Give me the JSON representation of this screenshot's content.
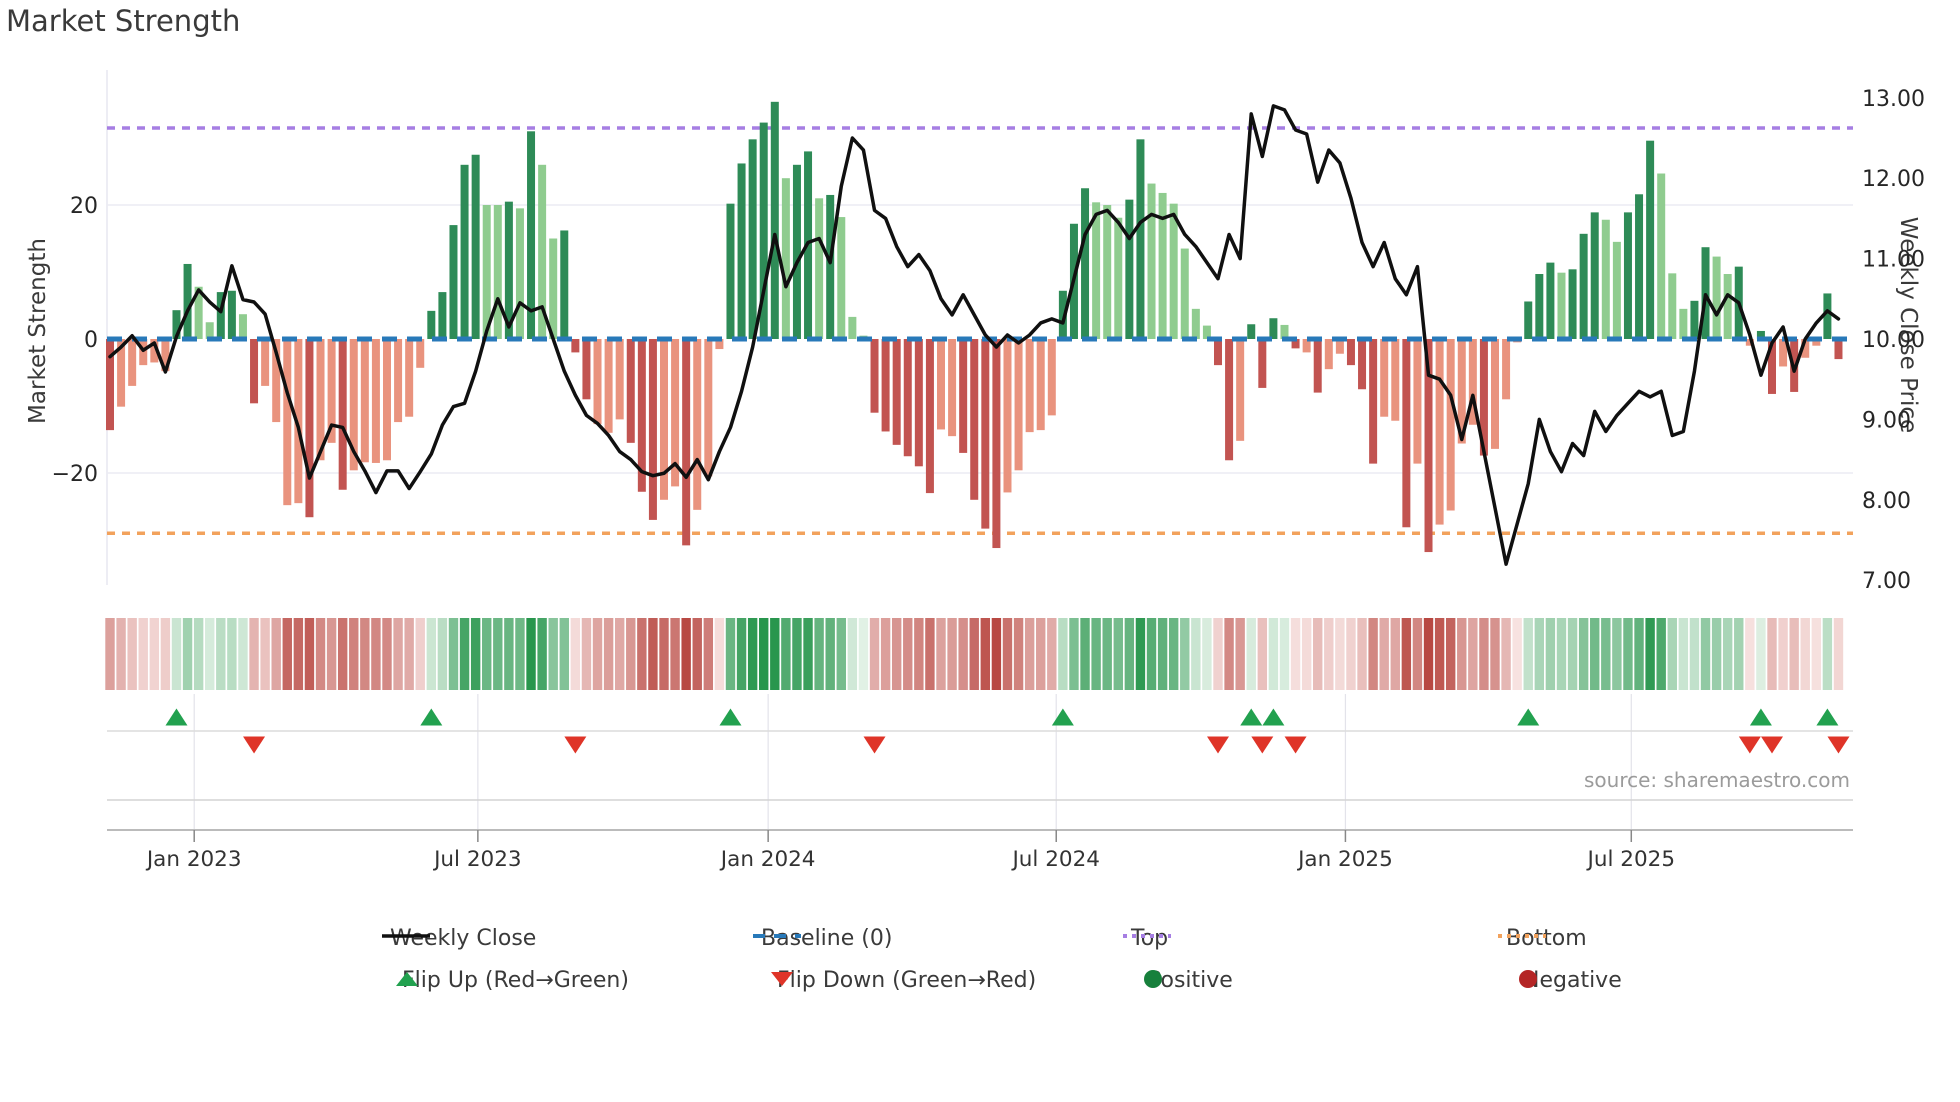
{
  "title": "Market Strength",
  "source": "source: sharemaestro.com",
  "left_axis_label": "Market Strength",
  "right_axis_label": "Weekly Close Price",
  "palette": {
    "dark_green": "#2e8b57",
    "light_green": "#8fcc8f",
    "salmon": "#e9937e",
    "dark_red": "#c25451",
    "baseline_blue": "#2879b9",
    "top_purple": "#a67ee3",
    "bottom_orange": "#f2a25c",
    "line_black": "#101010",
    "flip_up_green": "#22a14f",
    "flip_down_red": "#df3428",
    "positive_green": "#17803c",
    "negative_red": "#b42525",
    "grid": "#ebebf3",
    "band_grid": "#dcdcdc",
    "axis_spine": "#bbbbbb",
    "tick_text": "#262626"
  },
  "legend": {
    "row1": [
      {
        "label": "Weekly Close"
      },
      {
        "label": "Baseline (0)"
      },
      {
        "label": "Top"
      },
      {
        "label": "Bottom"
      }
    ],
    "row2": [
      {
        "label": "Flip Up (Red→Green)"
      },
      {
        "label": "Flip Down (Green→Red)"
      },
      {
        "label": "Positive"
      },
      {
        "label": "Negative"
      }
    ]
  },
  "chart_data": {
    "type": "bar+line combo with heatmap strip and flip markers",
    "title": "Market Strength",
    "x_axis": {
      "tick_labels": [
        "Jan 2023",
        "Jul 2023",
        "Jan 2024",
        "Jul 2024",
        "Jan 2025",
        "Jul 2025"
      ],
      "tick_weeks": [
        7.6,
        33.2,
        59.4,
        85.4,
        111.5,
        137.3
      ],
      "n_weeks": 157
    },
    "left_axis": {
      "label": "Market Strength",
      "ticks": [
        20,
        0,
        -20
      ],
      "baseline": 0,
      "top_line": 31.5,
      "bottom_line": -29
    },
    "right_axis": {
      "label": "Weekly Close Price",
      "ticks": [
        13,
        12,
        11,
        10,
        9,
        8,
        7
      ]
    },
    "strength_values": [
      -13.6,
      -10.1,
      -7.0,
      -3.9,
      -3.5,
      -4.8,
      4.3,
      11.2,
      7.8,
      2.5,
      7.0,
      7.2,
      3.7,
      -9.6,
      -7.0,
      -12.4,
      -24.8,
      -24.5,
      -26.6,
      -18.1,
      -15.5,
      -22.5,
      -19.6,
      -18.4,
      -18.5,
      -18.1,
      -12.4,
      -11.6,
      -4.3,
      4.2,
      7.0,
      17.0,
      26.0,
      27.5,
      20.0,
      20.0,
      20.5,
      19.5,
      31.0,
      26.0,
      15.0,
      16.2,
      -2.0,
      -9.0,
      -12.7,
      -14.0,
      -12.0,
      -15.5,
      -22.8,
      -27.0,
      -24.0,
      -22.0,
      -30.8,
      -25.5,
      -20.5,
      -1.5,
      20.2,
      26.2,
      29.8,
      32.3,
      35.4,
      24.0,
      26.0,
      28.0,
      21.0,
      21.5,
      18.2,
      3.3,
      0.5,
      -11.0,
      -13.8,
      -15.8,
      -17.5,
      -19.0,
      -23.0,
      -13.5,
      -14.5,
      -17.0,
      -24.0,
      -28.3,
      -31.2,
      -22.9,
      -19.6,
      -13.9,
      -13.6,
      -11.4,
      7.2,
      17.2,
      22.5,
      20.4,
      20.0,
      18.1,
      20.8,
      29.8,
      23.2,
      21.8,
      20.2,
      13.5,
      4.5,
      2.0,
      -3.9,
      -18.1,
      -15.2,
      2.2,
      -7.3,
      3.1,
      2.1,
      -1.4,
      -2.0,
      -8.0,
      -4.5,
      -2.2,
      -3.9,
      -7.5,
      -18.6,
      -11.6,
      -12.2,
      -28.1,
      -18.6,
      -31.8,
      -27.7,
      -25.6,
      -15.6,
      -12.8,
      -17.4,
      -16.4,
      -9.0,
      -0.5,
      5.6,
      9.7,
      11.4,
      9.9,
      10.4,
      15.7,
      18.9,
      17.8,
      14.5,
      18.9,
      21.6,
      29.6,
      24.7,
      9.8,
      4.5,
      5.7,
      13.7,
      12.3,
      9.7,
      10.8,
      -1.0,
      1.2,
      -8.2,
      -4.1,
      -7.9,
      -2.8,
      -1.0,
      6.8,
      -3.0
    ],
    "strength_bar_colors": [
      "dr",
      "s",
      "s",
      "s",
      "s",
      "s",
      "dg",
      "dg",
      "lg",
      "lg",
      "dg",
      "dg",
      "lg",
      "dr",
      "s",
      "s",
      "s",
      "s",
      "dr",
      "s",
      "s",
      "dr",
      "s",
      "s",
      "s",
      "s",
      "s",
      "s",
      "s",
      "dg",
      "dg",
      "dg",
      "dg",
      "dg",
      "lg",
      "lg",
      "dg",
      "lg",
      "dg",
      "lg",
      "lg",
      "dg",
      "dr",
      "dr",
      "s",
      "s",
      "s",
      "dr",
      "dr",
      "dr",
      "s",
      "s",
      "dr",
      "s",
      "s",
      "s",
      "dg",
      "dg",
      "dg",
      "dg",
      "dg",
      "lg",
      "dg",
      "dg",
      "lg",
      "dg",
      "lg",
      "lg",
      "lg",
      "dr",
      "dr",
      "dr",
      "dr",
      "dr",
      "dr",
      "s",
      "s",
      "dr",
      "dr",
      "dr",
      "dr",
      "s",
      "s",
      "s",
      "s",
      "s",
      "dg",
      "dg",
      "dg",
      "lg",
      "lg",
      "lg",
      "dg",
      "dg",
      "lg",
      "lg",
      "lg",
      "lg",
      "lg",
      "lg",
      "dr",
      "dr",
      "s",
      "dg",
      "dr",
      "dg",
      "lg",
      "dr",
      "s",
      "dr",
      "s",
      "s",
      "dr",
      "dr",
      "dr",
      "s",
      "s",
      "dr",
      "s",
      "dr",
      "s",
      "s",
      "s",
      "s",
      "dr",
      "s",
      "s",
      "s",
      "dg",
      "dg",
      "dg",
      "lg",
      "dg",
      "dg",
      "dg",
      "lg",
      "lg",
      "dg",
      "dg",
      "dg",
      "lg",
      "lg",
      "lg",
      "dg",
      "dg",
      "lg",
      "lg",
      "dg",
      "s",
      "dg",
      "dr",
      "s",
      "dr",
      "s",
      "s",
      "dg",
      "dr"
    ],
    "weekly_close": [
      9.78,
      9.9,
      10.04,
      9.86,
      9.95,
      9.59,
      10.03,
      10.35,
      10.61,
      10.46,
      10.34,
      10.91,
      10.49,
      10.46,
      10.31,
      9.83,
      9.33,
      8.9,
      8.27,
      8.6,
      8.93,
      8.9,
      8.6,
      8.36,
      8.09,
      8.36,
      8.36,
      8.14,
      8.35,
      8.57,
      8.93,
      9.16,
      9.2,
      9.6,
      10.1,
      10.5,
      10.15,
      10.45,
      10.35,
      10.4,
      10.0,
      9.6,
      9.3,
      9.05,
      8.95,
      8.8,
      8.6,
      8.5,
      8.35,
      8.3,
      8.33,
      8.45,
      8.28,
      8.5,
      8.25,
      8.6,
      8.9,
      9.35,
      9.9,
      10.6,
      11.3,
      10.65,
      10.95,
      11.2,
      11.25,
      10.95,
      11.9,
      12.5,
      12.35,
      11.6,
      11.5,
      11.15,
      10.9,
      11.05,
      10.85,
      10.5,
      10.3,
      10.55,
      10.3,
      10.05,
      9.9,
      10.05,
      9.95,
      10.05,
      10.2,
      10.25,
      10.2,
      10.75,
      11.3,
      11.55,
      11.6,
      11.45,
      11.25,
      11.45,
      11.55,
      11.5,
      11.55,
      11.3,
      11.15,
      10.95,
      10.75,
      11.3,
      11.0,
      12.8,
      12.27,
      12.9,
      12.85,
      12.6,
      12.55,
      11.95,
      12.35,
      12.19,
      11.75,
      11.2,
      10.9,
      11.2,
      10.75,
      10.55,
      10.9,
      9.55,
      9.5,
      9.3,
      8.75,
      9.3,
      8.6,
      7.9,
      7.2,
      7.7,
      8.2,
      9.0,
      8.6,
      8.35,
      8.7,
      8.55,
      9.1,
      8.85,
      9.05,
      9.2,
      9.35,
      9.28,
      9.35,
      8.8,
      8.85,
      9.6,
      10.55,
      10.3,
      10.55,
      10.45,
      10.05,
      9.55,
      9.95,
      10.15,
      9.6,
      10.0,
      10.2,
      10.35,
      10.25
    ],
    "flip_up_weeks": [
      6,
      29,
      56,
      86,
      103,
      105,
      128,
      149,
      155
    ],
    "flip_down_weeks": [
      13,
      42,
      69,
      100,
      104,
      107,
      148,
      150,
      156
    ]
  }
}
